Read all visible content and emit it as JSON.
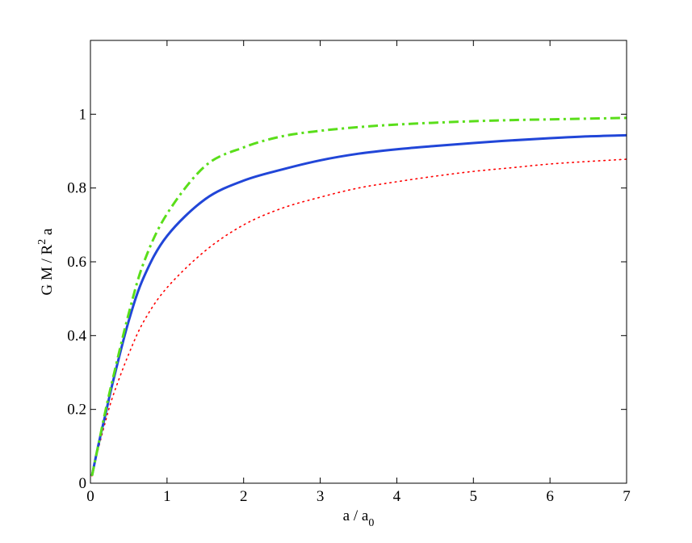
{
  "chart_data": {
    "type": "line",
    "title": "",
    "xlabel": {
      "main": "a / a",
      "sub": "0"
    },
    "ylabel": {
      "pre": "G M / R",
      "sup": "2",
      "post": " a"
    },
    "xlim": [
      0,
      7
    ],
    "ylim": [
      0,
      1.2
    ],
    "xticks": [
      0,
      1,
      2,
      3,
      4,
      5,
      6,
      7
    ],
    "yticks": [
      0,
      0.2,
      0.4,
      0.6,
      0.8,
      1
    ],
    "xtick_labels": [
      "0",
      "1",
      "2",
      "3",
      "4",
      "5",
      "6",
      "7"
    ],
    "ytick_labels": [
      "0",
      "0.2",
      "0.4",
      "0.6",
      "0.8",
      "1"
    ],
    "grid": false,
    "legend": "none",
    "series": [
      {
        "color": "#ff0000",
        "style": "dotted",
        "x": [
          0.02,
          0.1,
          0.2,
          0.3,
          0.5,
          0.7,
          1.0,
          1.5,
          2.0,
          2.5,
          3.0,
          3.5,
          4.0,
          4.5,
          5.0,
          5.5,
          6.0,
          6.5,
          7.0
        ],
        "y": [
          0.02,
          0.091,
          0.17,
          0.24,
          0.35,
          0.44,
          0.53,
          0.63,
          0.7,
          0.745,
          0.775,
          0.8,
          0.817,
          0.832,
          0.845,
          0.855,
          0.865,
          0.872,
          0.878
        ]
      },
      {
        "color": "#2146d8",
        "style": "solid",
        "x": [
          0.02,
          0.1,
          0.2,
          0.3,
          0.5,
          0.7,
          1.0,
          1.5,
          2.0,
          2.5,
          3.0,
          3.5,
          4.0,
          4.5,
          5.0,
          5.5,
          6.0,
          6.5,
          7.0
        ],
        "y": [
          0.02,
          0.1,
          0.19,
          0.28,
          0.44,
          0.56,
          0.67,
          0.77,
          0.82,
          0.85,
          0.875,
          0.893,
          0.905,
          0.914,
          0.922,
          0.929,
          0.935,
          0.94,
          0.943
        ]
      },
      {
        "color": "#5ade1a",
        "style": "dashdot",
        "x": [
          0.02,
          0.1,
          0.2,
          0.3,
          0.5,
          0.7,
          1.0,
          1.5,
          2.0,
          2.5,
          3.0,
          3.5,
          4.0,
          4.5,
          5.0,
          5.5,
          6.0,
          6.5,
          7.0
        ],
        "y": [
          0.02,
          0.1,
          0.2,
          0.29,
          0.46,
          0.6,
          0.73,
          0.86,
          0.91,
          0.94,
          0.955,
          0.965,
          0.972,
          0.977,
          0.981,
          0.984,
          0.986,
          0.988,
          0.99
        ]
      }
    ]
  }
}
